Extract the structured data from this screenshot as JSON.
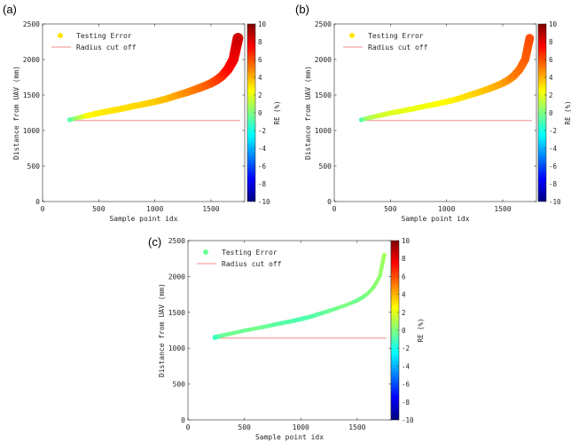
{
  "colormap_stops": [
    "#00007f",
    "#0000ff",
    "#007fff",
    "#00ffff",
    "#7fff7f",
    "#ffff00",
    "#ff7f00",
    "#ff0000",
    "#7f0000"
  ],
  "chart_data": [
    {
      "type": "scatter",
      "panel_label": "(a)",
      "xlabel": "Sample point idx",
      "ylabel": "Distance from UAV (mm)",
      "xlim": [
        0,
        1800
      ],
      "ylim": [
        0,
        2500
      ],
      "xticks": [
        0,
        500,
        1000,
        1500
      ],
      "yticks": [
        0,
        500,
        1000,
        1500,
        2000,
        2500
      ],
      "legend": [
        "Testing Error",
        "Radius cut off"
      ],
      "cutoff": 1140,
      "colorbar": {
        "label": "RE (%)",
        "clim": [
          -10,
          10
        ],
        "ticks": [
          -10,
          -8,
          -6,
          -4,
          -2,
          0,
          2,
          4,
          6,
          8,
          10
        ]
      },
      "x": [
        240,
        300,
        400,
        500,
        600,
        700,
        800,
        900,
        1000,
        1100,
        1200,
        1300,
        1400,
        1500,
        1550,
        1600,
        1650,
        1700,
        1720,
        1740
      ],
      "y": [
        1150,
        1175,
        1210,
        1245,
        1275,
        1305,
        1340,
        1370,
        1405,
        1445,
        1495,
        1545,
        1600,
        1665,
        1710,
        1770,
        1860,
        2000,
        2150,
        2300
      ],
      "re": [
        -1.0,
        0.5,
        2.5,
        2.8,
        3.0,
        3.1,
        3.2,
        3.3,
        3.5,
        3.8,
        4.3,
        4.8,
        5.3,
        5.8,
        6.2,
        6.6,
        7.2,
        7.7,
        8.0,
        8.4
      ]
    },
    {
      "type": "scatter",
      "panel_label": "(b)",
      "xlabel": "Sample point idx",
      "ylabel": "Distance from UAV (mm)",
      "xlim": [
        0,
        1800
      ],
      "ylim": [
        0,
        2500
      ],
      "xticks": [
        0,
        500,
        1000,
        1500
      ],
      "yticks": [
        0,
        500,
        1000,
        1500,
        2000,
        2500
      ],
      "legend": [
        "Testing Error",
        "Radius cut off"
      ],
      "cutoff": 1140,
      "colorbar": {
        "label": "RE (%)",
        "clim": [
          -10,
          10
        ],
        "ticks": [
          -10,
          -8,
          -6,
          -4,
          -2,
          0,
          2,
          4,
          6,
          8,
          10
        ]
      },
      "x": [
        240,
        300,
        400,
        500,
        600,
        700,
        800,
        900,
        1000,
        1100,
        1200,
        1300,
        1400,
        1500,
        1550,
        1600,
        1650,
        1700,
        1720,
        1740
      ],
      "y": [
        1150,
        1175,
        1210,
        1245,
        1275,
        1305,
        1340,
        1370,
        1405,
        1445,
        1495,
        1545,
        1600,
        1665,
        1710,
        1770,
        1860,
        2000,
        2150,
        2300
      ],
      "re": [
        -1.0,
        0.8,
        1.5,
        1.8,
        2.0,
        2.1,
        2.2,
        2.4,
        2.6,
        2.9,
        3.2,
        3.5,
        3.9,
        4.3,
        4.6,
        5.0,
        5.3,
        5.6,
        5.8,
        6.0
      ]
    },
    {
      "type": "scatter",
      "panel_label": "(c)",
      "xlabel": "Sample point idx",
      "ylabel": "Distance from UAV (mm)",
      "xlim": [
        0,
        1800
      ],
      "ylim": [
        0,
        2500
      ],
      "xticks": [
        0,
        500,
        1000,
        1500
      ],
      "yticks": [
        0,
        500,
        1000,
        1500,
        2000,
        2500
      ],
      "legend": [
        "Testing Error",
        "Radius cut off"
      ],
      "cutoff": 1140,
      "colorbar": {
        "label": "RE (%)",
        "clim": [
          -10,
          10
        ],
        "ticks": [
          -10,
          -8,
          -6,
          -4,
          -2,
          0,
          2,
          4,
          6,
          8,
          10
        ]
      },
      "x": [
        240,
        300,
        400,
        500,
        600,
        700,
        800,
        900,
        1000,
        1100,
        1200,
        1300,
        1400,
        1500,
        1550,
        1600,
        1650,
        1700,
        1720,
        1740
      ],
      "y": [
        1150,
        1175,
        1210,
        1245,
        1275,
        1305,
        1340,
        1370,
        1405,
        1445,
        1495,
        1545,
        1600,
        1665,
        1710,
        1770,
        1860,
        2000,
        2150,
        2300
      ],
      "re": [
        -1.5,
        -0.5,
        -0.3,
        -0.4,
        -0.2,
        -0.5,
        -0.7,
        -0.8,
        -1.0,
        -0.8,
        -0.6,
        -0.3,
        0.0,
        -0.4,
        -0.2,
        0.0,
        0.2,
        0.3,
        0.5,
        0.7
      ]
    }
  ]
}
